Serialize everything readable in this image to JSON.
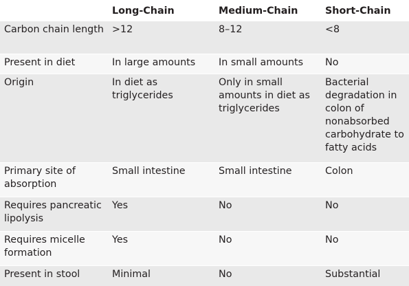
{
  "table": {
    "headers": [
      "",
      "Long-Chain",
      "Medium-Chain",
      "Short-Chain"
    ],
    "rows": [
      {
        "label": "Carbon chain length",
        "long": ">12",
        "medium": "8–12",
        "short": "<8"
      },
      {
        "label": "Present in diet",
        "long": "In large amounts",
        "medium": "In small amounts",
        "short": "No"
      },
      {
        "label": "Origin",
        "long": "In diet as triglycerides",
        "medium": "Only in small amounts in diet as triglycerides",
        "short": "Bacterial degradation in colon of nonabsorbed carbohydrate to fatty acids"
      },
      {
        "label": "Primary site of absorption",
        "long": "Small intestine",
        "medium": "Small intestine",
        "short": "Colon"
      },
      {
        "label": "Requires pancreatic lipolysis",
        "long": "Yes",
        "medium": "No",
        "short": "No"
      },
      {
        "label": "Requires micelle formation",
        "long": "Yes",
        "medium": "No",
        "short": "No"
      },
      {
        "label": "Present in stool",
        "long": "Minimal",
        "medium": "No",
        "short": "Substantial"
      }
    ]
  }
}
